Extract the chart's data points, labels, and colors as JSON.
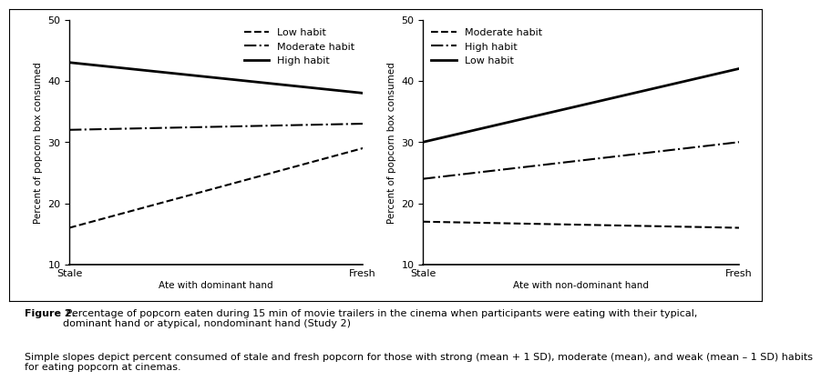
{
  "left_panel": {
    "xlabel": "Ate with dominant hand",
    "ylabel": "Percent of popcorn box consumed",
    "xlim": [
      0,
      1
    ],
    "ylim": [
      10,
      50
    ],
    "yticks": [
      10,
      20,
      30,
      40,
      50
    ],
    "xtick_labels": [
      "Stale",
      "Fresh"
    ],
    "lines": [
      {
        "label": "Low habit",
        "style": "dashed",
        "x": [
          0,
          1
        ],
        "y": [
          16,
          29
        ]
      },
      {
        "label": "Moderate habit",
        "style": "dashdot",
        "x": [
          0,
          1
        ],
        "y": [
          32,
          33
        ]
      },
      {
        "label": "High habit",
        "style": "solid",
        "x": [
          0,
          1
        ],
        "y": [
          43,
          38
        ]
      }
    ],
    "legend_order": [
      "Low habit",
      "Moderate habit",
      "High habit"
    ],
    "legend_loc": "upper right"
  },
  "right_panel": {
    "xlabel": "Ate with non-dominant hand",
    "ylabel": "Percent of popcorn box consumed",
    "xlim": [
      0,
      1
    ],
    "ylim": [
      10,
      50
    ],
    "yticks": [
      10,
      20,
      30,
      40,
      50
    ],
    "xtick_labels": [
      "Stale",
      "Fresh"
    ],
    "lines": [
      {
        "label": "Moderate habit",
        "style": "dashed",
        "x": [
          0,
          1
        ],
        "y": [
          17,
          16
        ]
      },
      {
        "label": "High habit",
        "style": "dashdot",
        "x": [
          0,
          1
        ],
        "y": [
          24,
          30
        ]
      },
      {
        "label": "Low habit",
        "style": "solid",
        "x": [
          0,
          1
        ],
        "y": [
          30,
          42
        ]
      }
    ],
    "legend_order": [
      "Moderate habit",
      "High habit",
      "Low habit"
    ],
    "legend_loc": "upper left"
  },
  "caption_bold": "Figure 2.",
  "caption_normal": " Percentage of popcorn eaten during 15 min of movie trailers in the cinema when participants were eating with their typical,\ndominant hand or atypical, nondominant hand (Study 2)",
  "caption_note": "Simple slopes depict percent consumed of stale and fresh popcorn for those with strong (mean + 1 SD), moderate (mean), and weak (mean – 1 SD) habits\nfor eating popcorn at cinemas.",
  "line_color": "#000000",
  "background_color": "#ffffff",
  "fontsize_axis_label": 7.5,
  "fontsize_tick": 8,
  "fontsize_legend": 8,
  "fontsize_caption": 8
}
